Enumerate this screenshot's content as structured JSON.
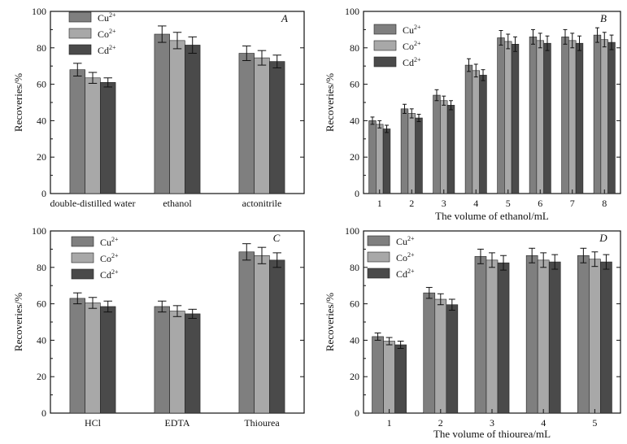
{
  "chart_data": [
    {
      "type": "bar",
      "panel_label": "A",
      "title": "",
      "xlabel": "",
      "ylabel": "Recoveries/%",
      "ylim": [
        0,
        100
      ],
      "yticks": [
        0,
        20,
        40,
        60,
        80,
        100
      ],
      "categories": [
        "double-distilled water",
        "ethanol",
        "actonitrile"
      ],
      "legend_position": "top-left",
      "series": [
        {
          "name": "Cu",
          "charge": "2+",
          "color": "#7f7f7f",
          "values": [
            68,
            87.5,
            77
          ],
          "errors": [
            3.5,
            4.5,
            4
          ]
        },
        {
          "name": "Co",
          "charge": "2+",
          "color": "#a8a8a8",
          "values": [
            63.5,
            84,
            74.5
          ],
          "errors": [
            3,
            4.5,
            4
          ]
        },
        {
          "name": "Cd",
          "charge": "2+",
          "color": "#4a4a4a",
          "values": [
            61,
            81.5,
            72.5
          ],
          "errors": [
            2.5,
            4.5,
            3.5
          ]
        }
      ]
    },
    {
      "type": "bar",
      "panel_label": "B",
      "title": "",
      "xlabel": "The volume of ethanol/mL",
      "ylabel": "Recoveries/%",
      "ylim": [
        0,
        100
      ],
      "yticks": [
        0,
        20,
        40,
        60,
        80,
        100
      ],
      "categories": [
        "1",
        "2",
        "3",
        "4",
        "5",
        "6",
        "7",
        "8"
      ],
      "legend_position": "top-left",
      "series": [
        {
          "name": "Cu",
          "charge": "2+",
          "color": "#7f7f7f",
          "values": [
            40,
            46.5,
            54,
            70.5,
            85.5,
            86,
            86,
            87
          ],
          "errors": [
            2,
            2.5,
            3,
            3.5,
            4,
            4,
            4,
            4
          ]
        },
        {
          "name": "Co",
          "charge": "2+",
          "color": "#a8a8a8",
          "values": [
            38,
            44,
            51,
            67.5,
            83.5,
            84,
            84,
            84.5
          ],
          "errors": [
            2,
            2.5,
            2.5,
            3.5,
            4,
            4,
            4,
            4
          ]
        },
        {
          "name": "Cd",
          "charge": "2+",
          "color": "#4a4a4a",
          "values": [
            35.5,
            41.5,
            48.5,
            65,
            82,
            82.5,
            82.5,
            83
          ],
          "errors": [
            2,
            2,
            2.5,
            3,
            4,
            4,
            4,
            4
          ]
        }
      ]
    },
    {
      "type": "bar",
      "panel_label": "C",
      "title": "",
      "xlabel": "",
      "ylabel": "Recoveries/%",
      "ylim": [
        0,
        100
      ],
      "yticks": [
        0,
        20,
        40,
        60,
        80,
        100
      ],
      "categories": [
        "HCl",
        "EDTA",
        "Thiourea"
      ],
      "legend_position": "top-left",
      "series": [
        {
          "name": "Cu",
          "charge": "2+",
          "color": "#7f7f7f",
          "values": [
            63,
            58.5,
            88.5
          ],
          "errors": [
            3,
            3,
            4.5
          ]
        },
        {
          "name": "Co",
          "charge": "2+",
          "color": "#a8a8a8",
          "values": [
            60.5,
            56,
            86.5
          ],
          "errors": [
            3,
            3,
            4.5
          ]
        },
        {
          "name": "Cd",
          "charge": "2+",
          "color": "#4a4a4a",
          "values": [
            58.5,
            54.5,
            84
          ],
          "errors": [
            3,
            2.5,
            4
          ]
        }
      ]
    },
    {
      "type": "bar",
      "panel_label": "D",
      "title": "",
      "xlabel": "The volume of thiourea/mL",
      "ylabel": "Recoveries/%",
      "ylim": [
        0,
        100
      ],
      "yticks": [
        0,
        20,
        40,
        60,
        80,
        100
      ],
      "categories": [
        "1",
        "2",
        "3",
        "4",
        "5"
      ],
      "legend_position": "top-left",
      "series": [
        {
          "name": "Cu",
          "charge": "2+",
          "color": "#7f7f7f",
          "values": [
            42,
            66,
            86,
            86.5,
            86.5
          ],
          "errors": [
            2,
            3,
            4,
            4,
            4
          ]
        },
        {
          "name": "Co",
          "charge": "2+",
          "color": "#a8a8a8",
          "values": [
            39.5,
            62.5,
            84,
            84,
            84.5
          ],
          "errors": [
            2,
            3,
            4,
            4,
            4
          ]
        },
        {
          "name": "Cd",
          "charge": "2+",
          "color": "#4a4a4a",
          "values": [
            37.5,
            59.5,
            82.5,
            83,
            83
          ],
          "errors": [
            2,
            3,
            4,
            4,
            4
          ]
        }
      ]
    }
  ]
}
